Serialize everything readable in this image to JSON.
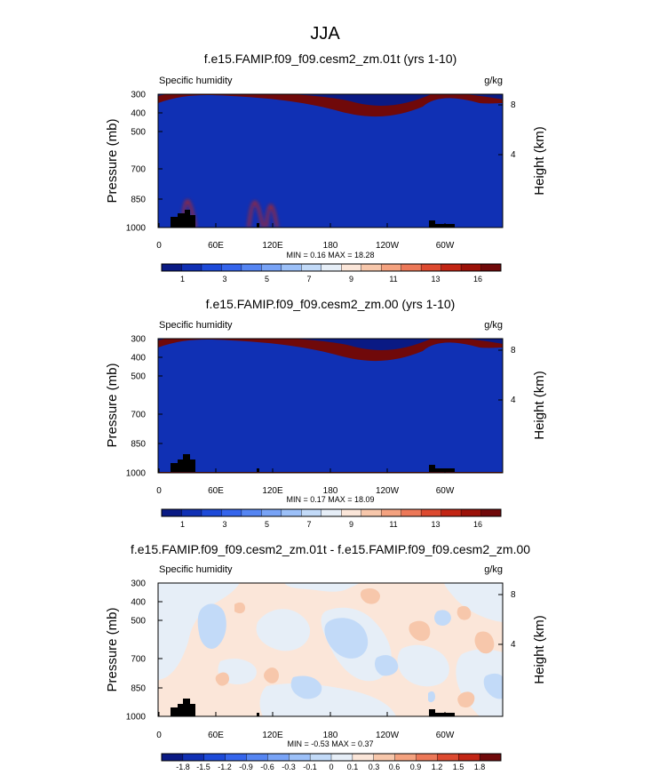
{
  "figure_title": "JJA",
  "panels": [
    {
      "title": "f.e15.FAMIP.f09_f09.cesm2_zm.01t (yrs 1-10)",
      "variable": "Specific humidity",
      "units": "g/kg",
      "min_max": "MIN =  0.16  MAX =  18.28"
    },
    {
      "title": "f.e15.FAMIP.f09_f09.cesm2_zm.00 (yrs 1-10)",
      "variable": "Specific humidity",
      "units": "g/kg",
      "min_max": "MIN =  0.17  MAX =  18.09"
    },
    {
      "title": "f.e15.FAMIP.f09_f09.cesm2_zm.01t - f.e15.FAMIP.f09_f09.cesm2_zm.00",
      "variable": "Specific humidity",
      "units": "g/kg",
      "min_max": "MIN = -0.53  MAX =  0.37"
    }
  ],
  "chart_data": [
    {
      "type": "heatmap",
      "title": "f.e15.FAMIP.f09_f09.cesm2_zm.01t (yrs 1-10)",
      "xlabel": "",
      "ylabel": "Pressure (mb)",
      "y2label": "Height (km)",
      "x_ticks": [
        "0",
        "60E",
        "120E",
        "180",
        "120W",
        "60W"
      ],
      "y_ticks": [
        "300",
        "400",
        "500",
        "700",
        "850",
        "1000"
      ],
      "y2_ticks": [
        "8",
        "4"
      ],
      "colorbar_ticks": [
        "1",
        "3",
        "5",
        "7",
        "9",
        "11",
        "13",
        "16"
      ],
      "colorbar_colors": [
        "#0a1a84",
        "#1030b4",
        "#1d4ad8",
        "#3565ec",
        "#5585f2",
        "#78a3f6",
        "#9cc0f8",
        "#c2daf8",
        "#e6eef7",
        "#fbe6d9",
        "#f7c7ab",
        "#f4a27f",
        "#ec7858",
        "#dd4a30",
        "#c22514",
        "#9b1108",
        "#70090a"
      ],
      "min": 0.16,
      "max": 18.28
    },
    {
      "type": "heatmap",
      "title": "f.e15.FAMIP.f09_f09.cesm2_zm.00 (yrs 1-10)",
      "xlabel": "",
      "ylabel": "Pressure (mb)",
      "y2label": "Height (km)",
      "x_ticks": [
        "0",
        "60E",
        "120E",
        "180",
        "120W",
        "60W"
      ],
      "y_ticks": [
        "300",
        "400",
        "500",
        "700",
        "850",
        "1000"
      ],
      "y2_ticks": [
        "8",
        "4"
      ],
      "colorbar_ticks": [
        "1",
        "3",
        "5",
        "7",
        "9",
        "11",
        "13",
        "16"
      ],
      "colorbar_colors": [
        "#0a1a84",
        "#1030b4",
        "#1d4ad8",
        "#3565ec",
        "#5585f2",
        "#78a3f6",
        "#9cc0f8",
        "#c2daf8",
        "#e6eef7",
        "#fbe6d9",
        "#f7c7ab",
        "#f4a27f",
        "#ec7858",
        "#dd4a30",
        "#c22514",
        "#9b1108",
        "#70090a"
      ],
      "min": 0.17,
      "max": 18.09
    },
    {
      "type": "heatmap",
      "title": "f.e15.FAMIP.f09_f09.cesm2_zm.01t - f.e15.FAMIP.f09_f09.cesm2_zm.00",
      "xlabel": "",
      "ylabel": "Pressure (mb)",
      "y2label": "Height (km)",
      "x_ticks": [
        "0",
        "60E",
        "120E",
        "180",
        "120W",
        "60W"
      ],
      "y_ticks": [
        "300",
        "400",
        "500",
        "700",
        "850",
        "1000"
      ],
      "y2_ticks": [
        "8",
        "4"
      ],
      "colorbar_ticks": [
        "-1.8",
        "-1.5",
        "-1.2",
        "-0.9",
        "-0.6",
        "-0.3",
        "-0.1",
        "0",
        "0.1",
        "0.3",
        "0.6",
        "0.9",
        "1.2",
        "1.5",
        "1.8"
      ],
      "colorbar_colors": [
        "#0a1a84",
        "#1030b4",
        "#1d4ad8",
        "#3565ec",
        "#5585f2",
        "#78a3f6",
        "#9cc0f8",
        "#c2daf8",
        "#e6eef7",
        "#fbe6d9",
        "#f7c7ab",
        "#f4a27f",
        "#ec7858",
        "#dd4a30",
        "#c22514",
        "#70090a"
      ],
      "min": -0.53,
      "max": 0.37
    }
  ]
}
